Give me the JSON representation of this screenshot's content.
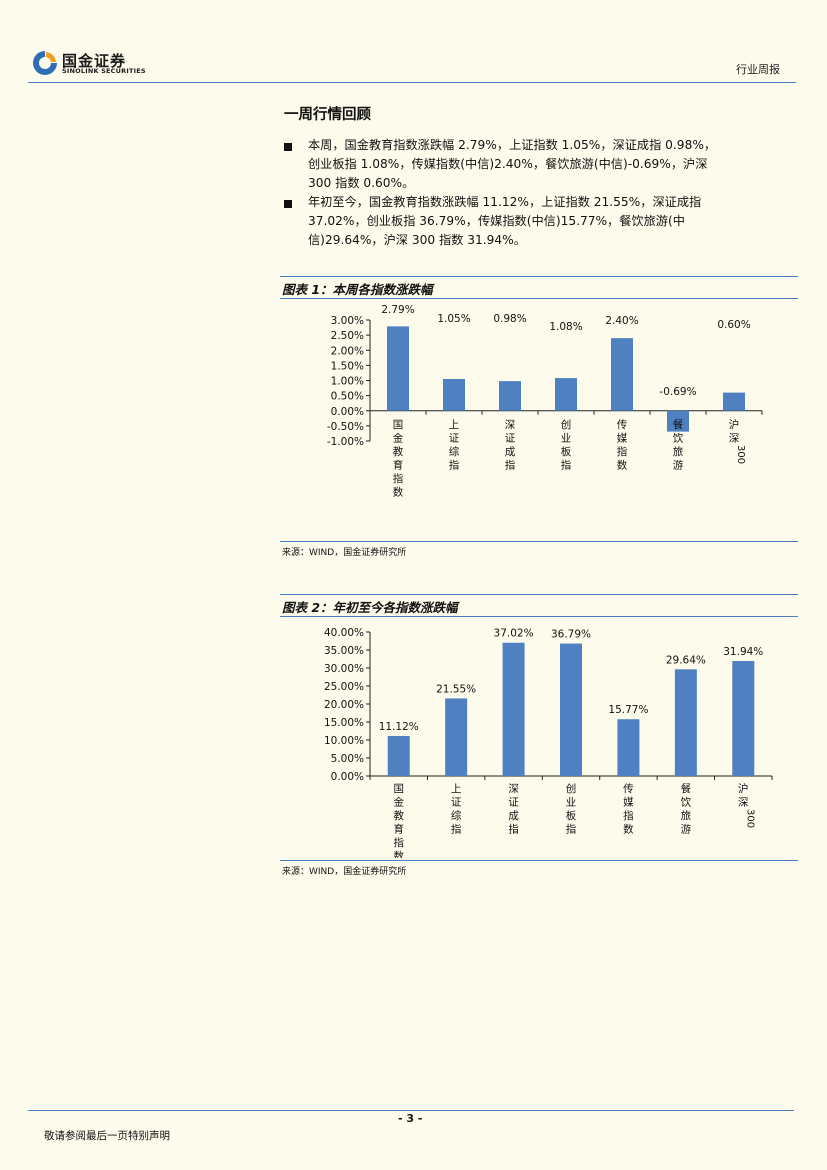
{
  "header": {
    "brand_cn": "国金证券",
    "brand_en": "SINOLINK SECURITIES",
    "report_type": "行业周报",
    "colors": {
      "logo_blue": "#2f6db5",
      "logo_orange": "#f39c1f",
      "rule": "#4a7fc1"
    }
  },
  "section": {
    "title": "一周行情回顾",
    "bullets": [
      {
        "lines": [
          "本周，国金教育指数涨跌幅 2.79%，上证指数 1.05%，深证成指 0.98%，",
          "创业板指 1.08%，传媒指数(中信)2.40%，餐饮旅游(中信)-0.69%，沪深",
          "300 指数 0.60%。"
        ]
      },
      {
        "lines": [
          "年初至今，国金教育指数涨跌幅 11.12%，上证指数 21.55%，深证成指",
          "37.02%，创业板指 36.79%，传媒指数(中信)15.77%，餐饮旅游(中",
          "信)29.64%，沪深 300 指数 31.94%。"
        ]
      }
    ]
  },
  "chart_data": [
    {
      "type": "bar",
      "figure_title": "图表 1：本周各指数涨跌幅",
      "categories": [
        "国金教育指数",
        "上证综指",
        "深证成指",
        "创业板指",
        "传媒指数",
        "餐饮旅游",
        "沪深300"
      ],
      "values": [
        2.79,
        1.05,
        0.98,
        1.08,
        2.4,
        -0.69,
        0.6
      ],
      "value_labels": [
        "2.79%",
        "1.05%",
        "0.98%",
        "1.08%",
        "2.40%",
        "-0.69%",
        "0.60%"
      ],
      "ylim": [
        -1.0,
        3.0
      ],
      "yticks": [
        "3.00%",
        "2.50%",
        "2.00%",
        "1.50%",
        "1.00%",
        "0.50%",
        "0.00%",
        "-0.50%",
        "-1.00%"
      ],
      "bar_color": "#4f81c2",
      "grid": false,
      "source": "来源：WIND，国金证券研究所"
    },
    {
      "type": "bar",
      "figure_title": "图表 2：年初至今各指数涨跌幅",
      "categories": [
        "国金教育指数",
        "上证综指",
        "深证成指",
        "创业板指",
        "传媒指数",
        "餐饮旅游",
        "沪深300"
      ],
      "values": [
        11.12,
        21.55,
        37.02,
        36.79,
        15.77,
        29.64,
        31.94
      ],
      "value_labels": [
        "11.12%",
        "21.55%",
        "37.02%",
        "36.79%",
        "15.77%",
        "29.64%",
        "31.94%"
      ],
      "ylim": [
        0,
        40
      ],
      "yticks": [
        "40.00%",
        "35.00%",
        "30.00%",
        "25.00%",
        "20.00%",
        "15.00%",
        "10.00%",
        "5.00%",
        "0.00%"
      ],
      "bar_color": "#4f81c2",
      "grid": false,
      "source": "来源：WIND，国金证券研究所"
    }
  ],
  "footer": {
    "page_number": "- 3 -",
    "disclaimer": "敬请参阅最后一页特别声明"
  }
}
